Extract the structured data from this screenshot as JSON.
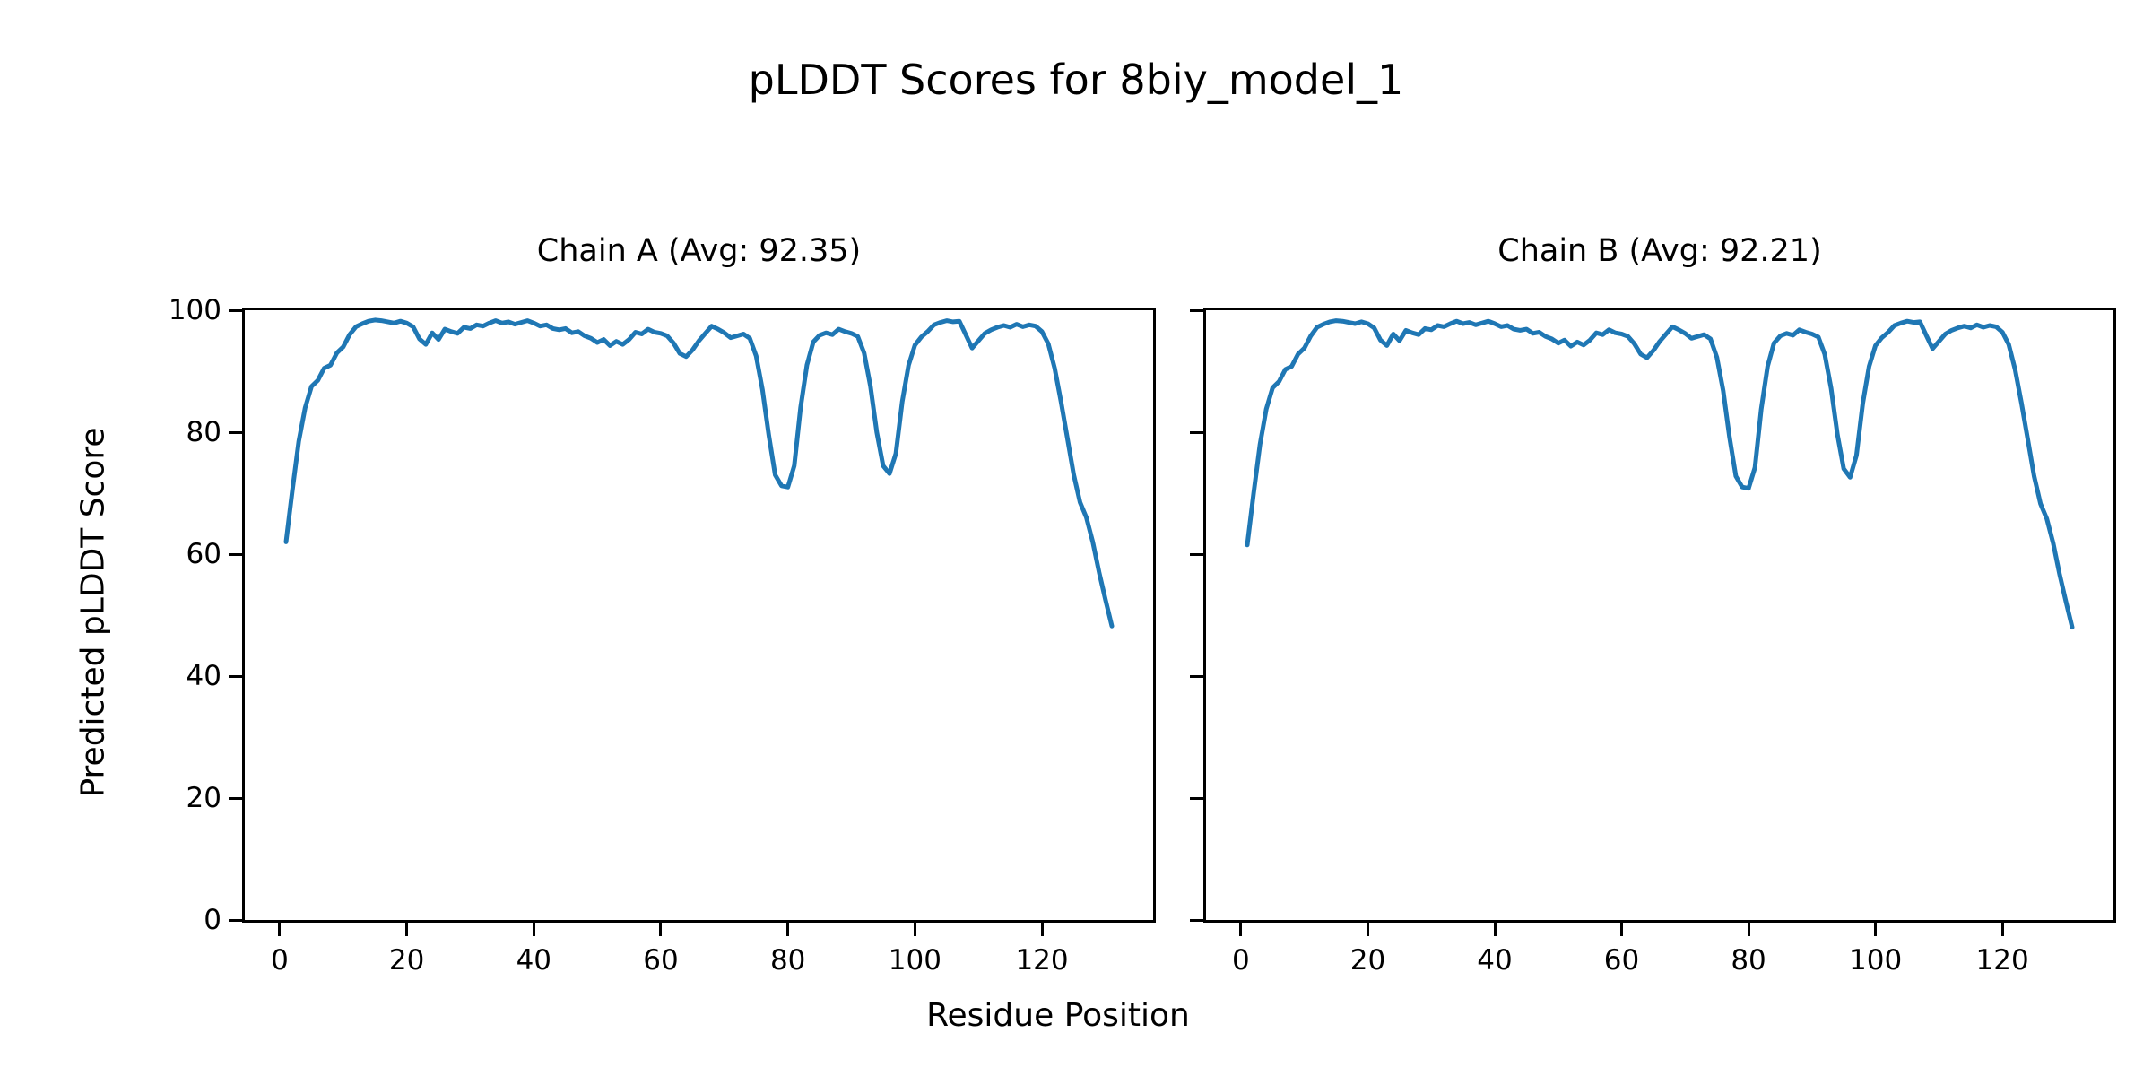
{
  "figure": {
    "title": "pLDDT Scores for 8biy_model_1",
    "xlabel": "Residue Position",
    "ylabel": "Predicted pLDDT Score"
  },
  "chart_data": [
    {
      "type": "line",
      "title": "Chain A (Avg: 92.35)",
      "chain": "A",
      "avg": 92.35,
      "line_color": "#1f77b4",
      "x_start": 1,
      "xlim": [
        -5.5,
        137.5
      ],
      "ylim": [
        0,
        100
      ],
      "xticks": [
        0,
        20,
        40,
        60,
        80,
        100,
        120
      ],
      "yticks": [
        0,
        20,
        40,
        60,
        80,
        100
      ],
      "show_ytick_labels": true,
      "xlabel_shared": "Residue Position",
      "ylabel_shared": "Predicted pLDDT Score",
      "values": [
        62.0,
        70.5,
        78.5,
        84.0,
        87.5,
        88.5,
        90.5,
        91.0,
        93.0,
        94.0,
        96.0,
        97.3,
        97.8,
        98.2,
        98.4,
        98.3,
        98.1,
        97.9,
        98.2,
        97.9,
        97.3,
        95.3,
        94.4,
        96.3,
        95.2,
        96.9,
        96.5,
        96.2,
        97.2,
        97.0,
        97.6,
        97.4,
        97.9,
        98.3,
        97.9,
        98.1,
        97.7,
        98.0,
        98.3,
        97.9,
        97.4,
        97.6,
        97.0,
        96.8,
        97.0,
        96.3,
        96.5,
        95.8,
        95.4,
        94.7,
        95.2,
        94.2,
        94.9,
        94.4,
        95.2,
        96.4,
        96.1,
        96.9,
        96.4,
        96.2,
        95.8,
        94.6,
        92.9,
        92.4,
        93.5,
        95.0,
        96.2,
        97.4,
        96.9,
        96.3,
        95.5,
        95.8,
        96.1,
        95.4,
        92.5,
        87.0,
        79.5,
        73.0,
        71.2,
        71.0,
        74.5,
        84.0,
        91.0,
        94.8,
        95.9,
        96.3,
        96.0,
        96.9,
        96.5,
        96.2,
        95.7,
        93.0,
        87.5,
        80.0,
        74.5,
        73.2,
        76.5,
        85.0,
        91.0,
        94.3,
        95.6,
        96.5,
        97.6,
        98.0,
        98.3,
        98.1,
        98.2,
        96.0,
        93.8,
        95.0,
        96.2,
        96.8,
        97.2,
        97.5,
        97.2,
        97.7,
        97.3,
        97.6,
        97.4,
        96.5,
        94.5,
        90.5,
        85.0,
        79.0,
        73.0,
        68.5,
        66.0,
        62.0,
        57.0,
        52.5,
        48.2
      ]
    },
    {
      "type": "line",
      "title": "Chain B (Avg: 92.21)",
      "chain": "B",
      "avg": 92.21,
      "line_color": "#1f77b4",
      "x_start": 1,
      "xlim": [
        -5.5,
        137.5
      ],
      "ylim": [
        0,
        100
      ],
      "xticks": [
        0,
        20,
        40,
        60,
        80,
        100,
        120
      ],
      "yticks": [
        0,
        20,
        40,
        60,
        80,
        100
      ],
      "show_ytick_labels": false,
      "xlabel_shared": "Residue Position",
      "ylabel_shared": "Predicted pLDDT Score",
      "values": [
        61.5,
        70.0,
        78.0,
        83.8,
        87.3,
        88.3,
        90.3,
        90.8,
        92.8,
        93.8,
        95.8,
        97.2,
        97.7,
        98.1,
        98.3,
        98.2,
        98.0,
        97.8,
        98.1,
        97.8,
        97.1,
        95.1,
        94.2,
        96.1,
        95.0,
        96.7,
        96.3,
        96.0,
        97.0,
        96.8,
        97.5,
        97.3,
        97.8,
        98.2,
        97.8,
        98.0,
        97.6,
        97.9,
        98.2,
        97.8,
        97.3,
        97.5,
        96.9,
        96.7,
        96.9,
        96.2,
        96.4,
        95.7,
        95.3,
        94.6,
        95.1,
        94.1,
        94.8,
        94.3,
        95.1,
        96.3,
        96.0,
        96.8,
        96.3,
        96.1,
        95.7,
        94.5,
        92.8,
        92.2,
        93.4,
        94.9,
        96.1,
        97.3,
        96.8,
        96.2,
        95.4,
        95.7,
        96.0,
        95.3,
        92.3,
        86.8,
        79.2,
        72.8,
        71.0,
        70.8,
        74.2,
        83.8,
        90.8,
        94.6,
        95.8,
        96.2,
        95.9,
        96.8,
        96.4,
        96.1,
        95.6,
        92.8,
        87.2,
        79.6,
        74.0,
        72.6,
        76.2,
        84.8,
        90.8,
        94.2,
        95.5,
        96.4,
        97.5,
        97.9,
        98.2,
        98.0,
        98.1,
        95.9,
        93.7,
        94.9,
        96.1,
        96.7,
        97.1,
        97.4,
        97.1,
        97.6,
        97.2,
        97.5,
        97.3,
        96.4,
        94.4,
        90.3,
        84.8,
        78.8,
        72.8,
        68.3,
        65.8,
        61.8,
        56.8,
        52.3,
        48.0
      ]
    }
  ]
}
